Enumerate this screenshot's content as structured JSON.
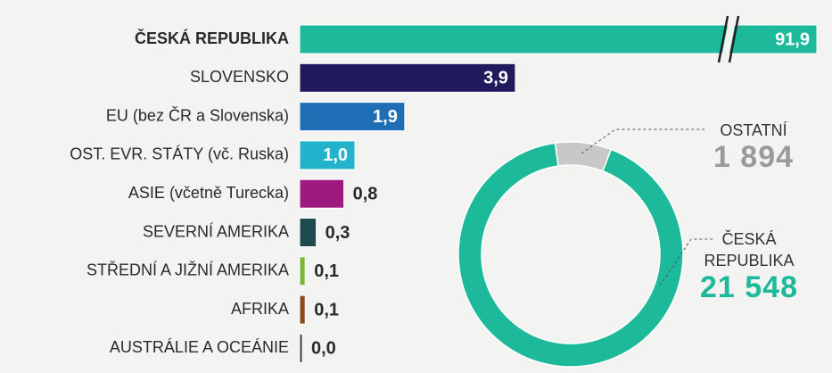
{
  "chart_data": [
    {
      "type": "bar",
      "categories": [
        "ČESKÁ REPUBLIKA",
        "SLOVENSKO",
        "EU (bez ČR a Slovenska)",
        "OST. EVR. STÁTY (vč. Ruska)",
        "ASIE (včetně Turecka)",
        "SEVERNÍ AMERIKA",
        "STŘEDNÍ A JIŽNÍ AMERIKA",
        "AFRIKA",
        "AUSTRÁLIE A OCEÁNIE"
      ],
      "values": [
        91.9,
        3.9,
        1.9,
        1.0,
        0.8,
        0.3,
        0.1,
        0.1,
        0.0
      ],
      "value_labels": [
        "91,9",
        "3,9",
        "1,9",
        "1,0",
        "0,8",
        "0,3",
        "0,1",
        "0,1",
        "0,0"
      ],
      "colors": [
        "#1db99b",
        "#211a5c",
        "#1f6db5",
        "#22b3cb",
        "#9e1a7e",
        "#1e4a4e",
        "#7ab63b",
        "#8a4a1c",
        "#3a3a3a"
      ],
      "xlim": [
        0,
        9.35
      ],
      "axis_break": true
    },
    {
      "type": "donut",
      "categories": [
        "OSTATNÍ",
        "ČESKÁ REPUBLIKA"
      ],
      "values": [
        1894,
        21548
      ],
      "value_labels": [
        "1 894",
        "21 548"
      ],
      "colors": [
        "#c8c8c8",
        "#1db99b"
      ]
    }
  ]
}
